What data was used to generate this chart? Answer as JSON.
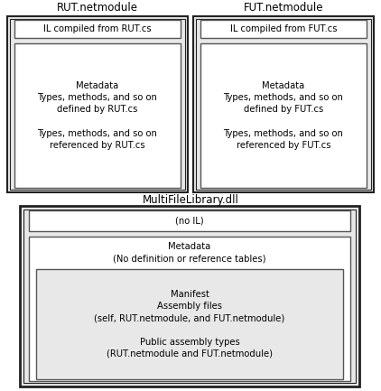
{
  "bg_color": "#ffffff",
  "box_fill_light": "#e8e8e8",
  "box_fill_white": "#ffffff",
  "box_edge": "#555555",
  "box_edge_dark": "#222222",
  "font_family": "DejaVu Sans",
  "font_size_title": 8.5,
  "font_size_body": 7.2,
  "rut_title": "RUT.netmodule",
  "rut_il": "IL compiled from RUT.cs",
  "rut_meta": "Metadata\nTypes, methods, and so on\ndefined by RUT.cs\n\nTypes, methods, and so on\nreferenced by RUT.cs",
  "fut_title": "FUT.netmodule",
  "fut_il": "IL compiled from FUT.cs",
  "fut_meta": "Metadata\nTypes, methods, and so on\ndefined by FUT.cs\n\nTypes, methods, and so on\nreferenced by FUT.cs",
  "dll_title": "MultiFileLibrary.dll",
  "dll_no_il": "(no IL)",
  "dll_meta": "Metadata\n(No definition or reference tables)",
  "dll_manifest": "Manifest\nAssembly files\n(self, RUT.netmodule, and FUT.netmodule)\n\nPublic assembly types\n(RUT.netmodule and FUT.netmodule)"
}
